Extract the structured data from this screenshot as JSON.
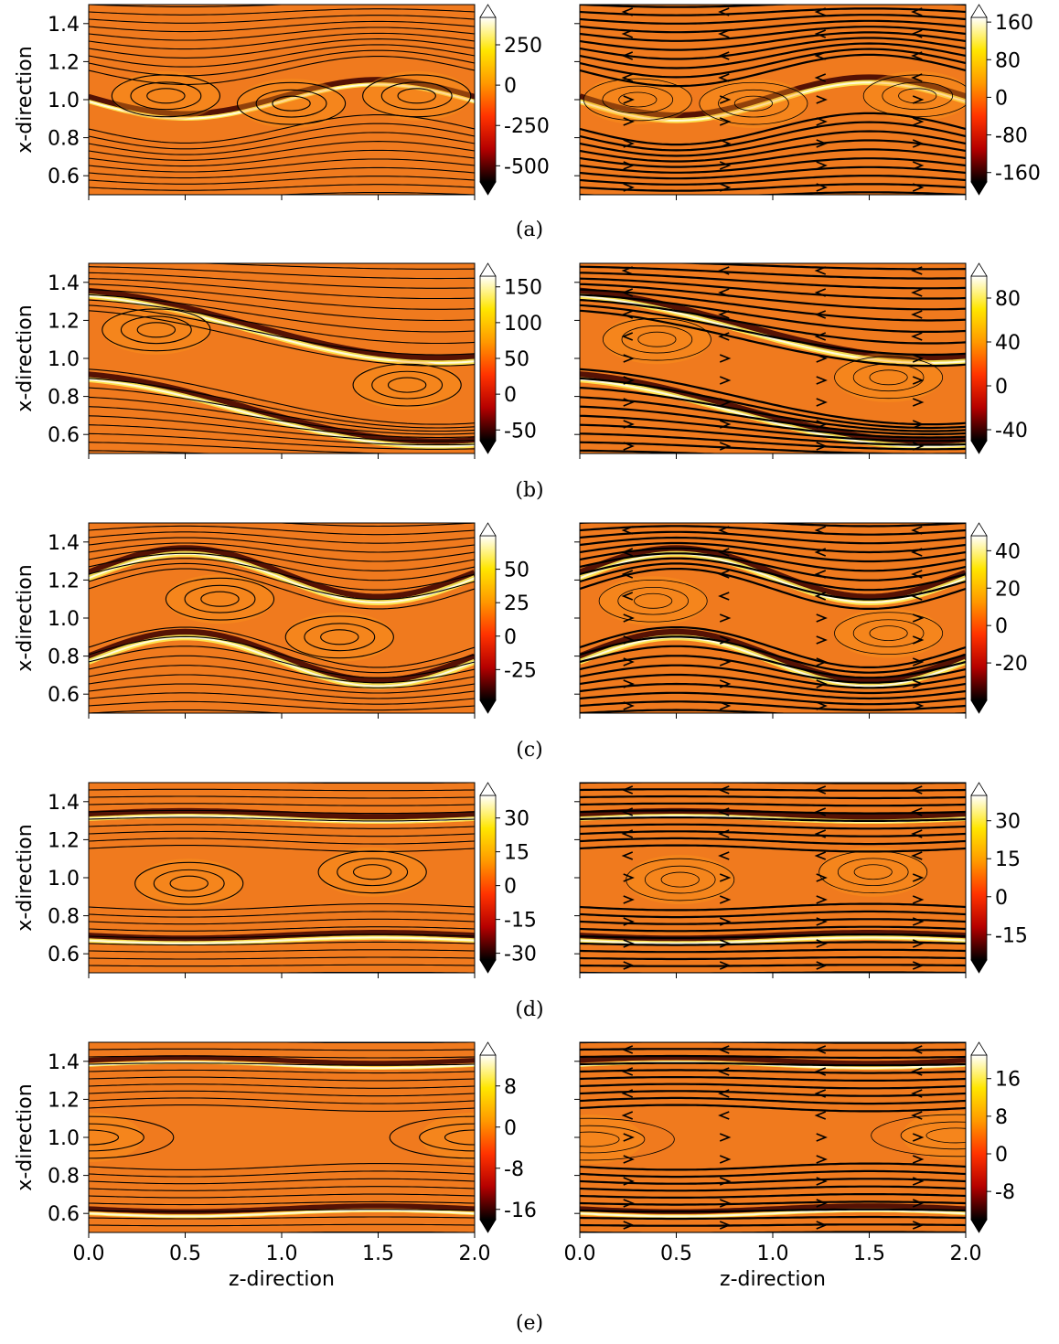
{
  "colors": {
    "base": "#f07a1e",
    "line": "#000000",
    "colormap": [
      "#000000",
      "#b50000",
      "#ff3300",
      "#ff9900",
      "#ffe600",
      "#ffffff"
    ]
  },
  "chart_data": [
    {
      "type": "heatmap",
      "panel": "(a)",
      "side": "left",
      "title": "",
      "xlabel": "",
      "ylabel": "x-direction",
      "xlim": [
        0.0,
        2.0
      ],
      "ylim": [
        0.5,
        1.5
      ],
      "x_ticks": [
        0.0,
        0.5,
        1.0,
        1.5,
        2.0
      ],
      "x_tick_labels": [],
      "y_ticks": [
        0.6,
        0.8,
        1.0,
        1.2,
        1.4
      ],
      "y_tick_labels": [
        "0.6",
        "0.8",
        "1.0",
        "1.2",
        "1.4"
      ],
      "colorbar": {
        "range": [
          -600,
          420
        ],
        "ticks": [
          250,
          0,
          -250,
          -500
        ],
        "tick_labels": [
          "250",
          "0",
          "-250",
          "-500"
        ],
        "extend": "both"
      },
      "structure": "shear_layer",
      "amplitude": 0.09,
      "intensity": 0.35,
      "vortex_centers": [
        [
          0.4,
          1.02
        ],
        [
          1.05,
          0.98
        ],
        [
          1.7,
          1.02
        ]
      ]
    },
    {
      "type": "heatmap",
      "panel": "(a)",
      "side": "right",
      "title": "",
      "xlabel": "",
      "ylabel": "",
      "xlim": [
        0.0,
        2.0
      ],
      "ylim": [
        0.5,
        1.5
      ],
      "x_ticks": [
        0.0,
        0.5,
        1.0,
        1.5,
        2.0
      ],
      "x_tick_labels": [],
      "y_ticks": [
        0.6,
        0.8,
        1.0,
        1.2,
        1.4
      ],
      "y_tick_labels": [],
      "colorbar": {
        "range": [
          -180,
          170
        ],
        "ticks": [
          160,
          80,
          0,
          -80,
          -160
        ],
        "tick_labels": [
          "160",
          "80",
          "0",
          "-80",
          "-160"
        ],
        "extend": "both"
      },
      "structure": "shear_layer_arrows",
      "amplitude": 0.1,
      "intensity": 0.5,
      "vortex_centers": [
        [
          0.3,
          1.0
        ],
        [
          0.9,
          0.98
        ],
        [
          1.75,
          1.02
        ]
      ]
    },
    {
      "type": "heatmap",
      "panel": "(b)",
      "side": "left",
      "title": "",
      "xlabel": "",
      "ylabel": "x-direction",
      "xlim": [
        0.0,
        2.0
      ],
      "ylim": [
        0.5,
        1.5
      ],
      "x_ticks": [
        0.0,
        0.5,
        1.0,
        1.5,
        2.0
      ],
      "x_tick_labels": [],
      "y_ticks": [
        0.6,
        0.8,
        1.0,
        1.2,
        1.4
      ],
      "y_tick_labels": [
        "0.6",
        "0.8",
        "1.0",
        "1.2",
        "1.4"
      ],
      "colorbar": {
        "range": [
          -65,
          165
        ],
        "ticks": [
          150,
          100,
          50,
          0,
          -50
        ],
        "tick_labels": [
          "150",
          "100",
          "50",
          "0",
          "-50"
        ],
        "extend": "both"
      },
      "structure": "tilted_layer",
      "amplitude": 0.18,
      "intensity": 0.5,
      "vortex_centers": [
        [
          0.35,
          1.15
        ],
        [
          1.65,
          0.86
        ]
      ]
    },
    {
      "type": "heatmap",
      "panel": "(b)",
      "side": "right",
      "title": "",
      "xlabel": "",
      "ylabel": "",
      "xlim": [
        0.0,
        2.0
      ],
      "ylim": [
        0.5,
        1.5
      ],
      "x_ticks": [
        0.0,
        0.5,
        1.0,
        1.5,
        2.0
      ],
      "x_tick_labels": [],
      "y_ticks": [
        0.6,
        0.8,
        1.0,
        1.2,
        1.4
      ],
      "y_tick_labels": [],
      "colorbar": {
        "range": [
          -50,
          100
        ],
        "ticks": [
          80,
          40,
          0,
          -40
        ],
        "tick_labels": [
          "80",
          "40",
          "0",
          "-40"
        ],
        "extend": "both"
      },
      "structure": "tilted_layer_arrows",
      "amplitude": 0.18,
      "intensity": 0.55,
      "vortex_centers": [
        [
          0.4,
          1.1
        ],
        [
          1.6,
          0.9
        ]
      ]
    },
    {
      "type": "heatmap",
      "panel": "(c)",
      "side": "left",
      "title": "",
      "xlabel": "",
      "ylabel": "x-direction",
      "xlim": [
        0.0,
        2.0
      ],
      "ylim": [
        0.5,
        1.5
      ],
      "x_ticks": [
        0.0,
        0.5,
        1.0,
        1.5,
        2.0
      ],
      "x_tick_labels": [],
      "y_ticks": [
        0.6,
        0.8,
        1.0,
        1.2,
        1.4
      ],
      "y_tick_labels": [
        "0.6",
        "0.8",
        "1.0",
        "1.2",
        "1.4"
      ],
      "colorbar": {
        "range": [
          -48,
          75
        ],
        "ticks": [
          50,
          25,
          0,
          -25
        ],
        "tick_labels": [
          "50",
          "25",
          "0",
          "-25"
        ],
        "extend": "both"
      },
      "structure": "two_vortices",
      "amplitude": 0.16,
      "intensity": 0.6,
      "vortex_centers": [
        [
          0.68,
          1.1
        ],
        [
          1.3,
          0.9
        ]
      ]
    },
    {
      "type": "heatmap",
      "panel": "(c)",
      "side": "right",
      "title": "",
      "xlabel": "",
      "ylabel": "",
      "xlim": [
        0.0,
        2.0
      ],
      "ylim": [
        0.5,
        1.5
      ],
      "x_ticks": [
        0.0,
        0.5,
        1.0,
        1.5,
        2.0
      ],
      "x_tick_labels": [],
      "y_ticks": [
        0.6,
        0.8,
        1.0,
        1.2,
        1.4
      ],
      "y_tick_labels": [],
      "colorbar": {
        "range": [
          -40,
          48
        ],
        "ticks": [
          40,
          20,
          0,
          -20
        ],
        "tick_labels": [
          "40",
          "20",
          "0",
          "-20"
        ],
        "extend": "both"
      },
      "structure": "two_vortices_arrows",
      "amplitude": 0.16,
      "intensity": 0.6,
      "vortex_centers": [
        [
          0.38,
          1.09
        ],
        [
          1.6,
          0.92
        ]
      ]
    },
    {
      "type": "heatmap",
      "panel": "(d)",
      "side": "left",
      "title": "",
      "xlabel": "",
      "ylabel": "x-direction",
      "xlim": [
        0.0,
        2.0
      ],
      "ylim": [
        0.5,
        1.5
      ],
      "x_ticks": [
        0.0,
        0.5,
        1.0,
        1.5,
        2.0
      ],
      "x_tick_labels": [],
      "y_ticks": [
        0.6,
        0.8,
        1.0,
        1.2,
        1.4
      ],
      "y_tick_labels": [
        "0.6",
        "0.8",
        "1.0",
        "1.2",
        "1.4"
      ],
      "colorbar": {
        "range": [
          -33,
          40
        ],
        "ticks": [
          30,
          15,
          0,
          -15,
          -30
        ],
        "tick_labels": [
          "30",
          "15",
          "0",
          "-15",
          "-30"
        ],
        "extend": "both"
      },
      "structure": "bands_vortices",
      "amplitude": 0.04,
      "intensity": 0.4,
      "vortex_centers": [
        [
          0.52,
          0.97
        ],
        [
          1.47,
          1.03
        ]
      ]
    },
    {
      "type": "heatmap",
      "panel": "(d)",
      "side": "right",
      "title": "",
      "xlabel": "",
      "ylabel": "",
      "xlim": [
        0.0,
        2.0
      ],
      "ylim": [
        0.5,
        1.5
      ],
      "x_ticks": [
        0.0,
        0.5,
        1.0,
        1.5,
        2.0
      ],
      "x_tick_labels": [],
      "y_ticks": [
        0.6,
        0.8,
        1.0,
        1.2,
        1.4
      ],
      "y_tick_labels": [],
      "colorbar": {
        "range": [
          -25,
          40
        ],
        "ticks": [
          30,
          15,
          0,
          -15
        ],
        "tick_labels": [
          "30",
          "15",
          "0",
          "-15"
        ],
        "extend": "both"
      },
      "structure": "bands_vortices_arrows",
      "amplitude": 0.04,
      "intensity": 0.4,
      "vortex_centers": [
        [
          0.52,
          0.99
        ],
        [
          1.52,
          1.03
        ]
      ]
    },
    {
      "type": "heatmap",
      "panel": "(e)",
      "side": "left",
      "title": "",
      "xlabel": "z-direction",
      "ylabel": "x-direction",
      "xlim": [
        0.0,
        2.0
      ],
      "ylim": [
        0.5,
        1.5
      ],
      "x_ticks": [
        0.0,
        0.5,
        1.0,
        1.5,
        2.0
      ],
      "x_tick_labels": [
        "0.0",
        "0.5",
        "1.0",
        "1.5",
        "2.0"
      ],
      "y_ticks": [
        0.6,
        0.8,
        1.0,
        1.2,
        1.4
      ],
      "y_tick_labels": [
        "0.6",
        "0.8",
        "1.0",
        "1.2",
        "1.4"
      ],
      "colorbar": {
        "range": [
          -18,
          14
        ],
        "ticks": [
          8,
          0,
          -8,
          -16
        ],
        "tick_labels": [
          "8",
          "0",
          "-8",
          "-16"
        ],
        "extend": "both"
      },
      "structure": "cats_eye",
      "amplitude": 0.0,
      "intensity": 0.25,
      "vortex_centers": [
        [
          0.0,
          1.0
        ],
        [
          2.0,
          1.0
        ]
      ]
    },
    {
      "type": "heatmap",
      "panel": "(e)",
      "side": "right",
      "title": "",
      "xlabel": "z-direction",
      "ylabel": "",
      "xlim": [
        0.0,
        2.0
      ],
      "ylim": [
        0.5,
        1.5
      ],
      "x_ticks": [
        0.0,
        0.5,
        1.0,
        1.5,
        2.0
      ],
      "x_tick_labels": [
        "0.0",
        "0.5",
        "1.0",
        "1.5",
        "2.0"
      ],
      "y_ticks": [
        0.6,
        0.8,
        1.0,
        1.2,
        1.4
      ],
      "y_tick_labels": [],
      "colorbar": {
        "range": [
          -14,
          21
        ],
        "ticks": [
          16,
          8,
          0,
          -8
        ],
        "tick_labels": [
          "16",
          "8",
          "0",
          "-8"
        ],
        "extend": "both"
      },
      "structure": "cats_eye_arrows",
      "amplitude": 0.0,
      "intensity": 0.25,
      "vortex_centers": [
        [
          0.05,
          0.99
        ],
        [
          1.95,
          1.01
        ]
      ]
    }
  ],
  "captions": [
    "(a)",
    "(b)",
    "(c)",
    "(d)",
    "(e)"
  ]
}
